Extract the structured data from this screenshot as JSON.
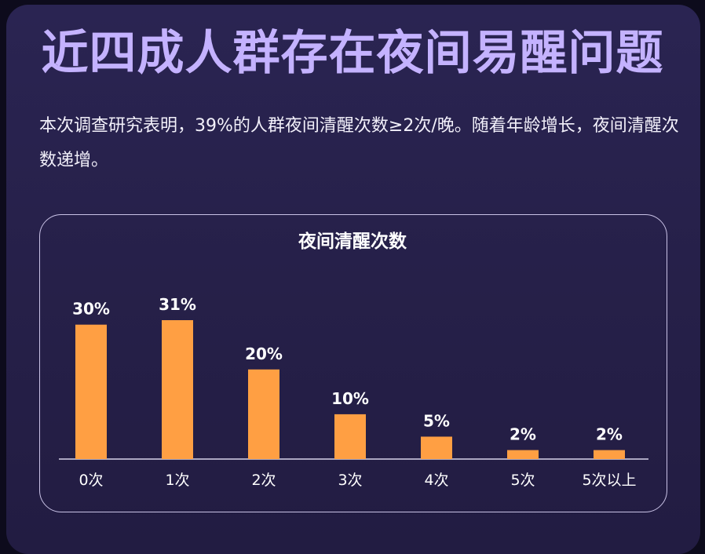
{
  "header": {
    "title": "近四成人群存在夜间易醒问题",
    "description": "本次调查研究表明，39%的人群夜间清醒次数≥2次/晚。随着年龄增长，夜间清醒次数递增。"
  },
  "colors": {
    "bar": "#ff9f43",
    "title": "#c4b2ff",
    "background": "#262049"
  },
  "chart_data": {
    "type": "bar",
    "title": "夜间清醒次数",
    "categories": [
      "0次",
      "1次",
      "2次",
      "3次",
      "4次",
      "5次",
      "5次以上"
    ],
    "values": [
      30,
      31,
      20,
      10,
      5,
      2,
      2
    ],
    "value_labels": [
      "30%",
      "31%",
      "20%",
      "10%",
      "5%",
      "2%",
      "2%"
    ],
    "ylim": [
      0,
      31
    ],
    "grid": false,
    "legend": "none"
  }
}
